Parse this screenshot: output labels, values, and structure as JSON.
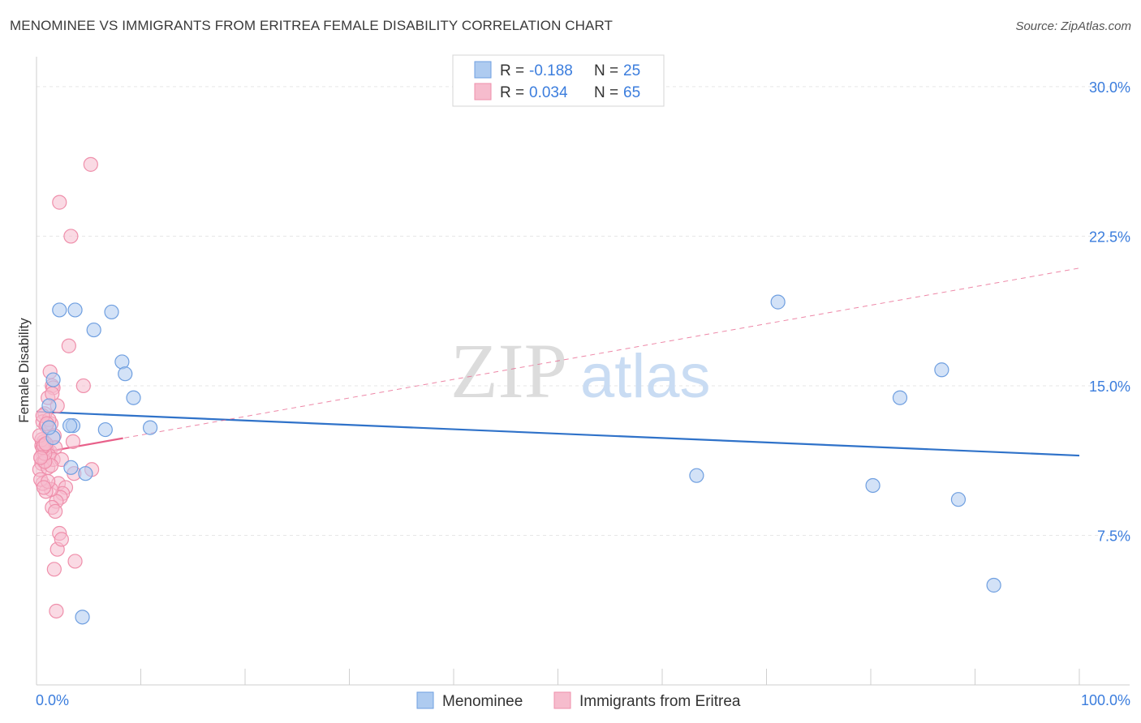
{
  "title": "MENOMINEE VS IMMIGRANTS FROM ERITREA FEMALE DISABILITY CORRELATION CHART",
  "source": "Source: ZipAtlas.com",
  "watermark": {
    "zip": "ZIP",
    "atlas": "atlas"
  },
  "legend": {
    "r_label": "R =",
    "n_label": "N =",
    "rows": [
      {
        "r": "-0.188",
        "n": "25"
      },
      {
        "r": "0.034",
        "n": "65"
      }
    ]
  },
  "bottom_legend": [
    "Menominee",
    "Immigrants from Eritrea"
  ],
  "colors": {
    "menominee_fill": "#aecbf0",
    "menominee_stroke": "#6f9fe0",
    "menominee_line": "#2f72c9",
    "eritrea_fill": "#f6bccd",
    "eritrea_stroke": "#ef8fab",
    "eritrea_line": "#e8608a",
    "axis_text": "#3b7ddd",
    "grid": "#e6e6e6"
  },
  "chart_data": {
    "type": "scatter",
    "title": "MENOMINEE VS IMMIGRANTS FROM ERITREA FEMALE DISABILITY CORRELATION CHART",
    "xlabel": "",
    "ylabel": "Female Disability",
    "xlim": [
      0,
      100
    ],
    "ylim": [
      0,
      31.5
    ],
    "x_tick_labels": [
      "0.0%",
      "100.0%"
    ],
    "y_ticks": [
      7.5,
      15.0,
      22.5,
      30.0
    ],
    "y_tick_labels": [
      "7.5%",
      "15.0%",
      "22.5%",
      "30.0%"
    ],
    "grid": true,
    "legend_position": "top-center",
    "series": [
      {
        "name": "Menominee",
        "x": [
          2.2,
          7.2,
          3.7,
          8.2,
          8.5,
          9.3,
          5.5,
          1.6,
          1.2,
          1.6,
          3.5,
          3.2,
          6.6,
          10.9,
          3.3,
          4.7,
          4.4,
          71.1,
          86.8,
          82.8,
          80.2,
          88.4,
          63.3,
          91.8,
          1.2
        ],
        "y": [
          18.8,
          18.7,
          18.8,
          16.2,
          15.6,
          14.4,
          17.8,
          15.3,
          14.0,
          12.4,
          13.0,
          13.0,
          12.8,
          12.9,
          10.9,
          10.6,
          3.4,
          19.2,
          15.8,
          14.4,
          10.0,
          9.3,
          10.5,
          5.0,
          12.9
        ],
        "trend": {
          "x": [
            0,
            100
          ],
          "y": [
            13.7,
            11.5
          ]
        }
      },
      {
        "name": "Immigrants from Eritrea",
        "x": [
          5.2,
          2.2,
          3.3,
          3.1,
          1.3,
          1.5,
          1.6,
          1.1,
          2.0,
          0.8,
          0.6,
          0.9,
          1.4,
          1.7,
          0.7,
          0.5,
          1.0,
          0.6,
          0.4,
          1.3,
          0.9,
          1.8,
          1.2,
          0.7,
          0.5,
          0.3,
          1.1,
          1.6,
          2.1,
          2.8,
          2.5,
          4.5,
          3.6,
          2.3,
          1.9,
          1.5,
          1.4,
          0.9,
          0.6,
          0.4,
          2.4,
          3.5,
          5.3,
          1.4,
          0.8,
          2.2,
          2.0,
          3.7,
          1.7,
          1.9,
          0.8,
          0.6,
          0.5,
          0.3,
          0.7,
          0.9,
          1.2,
          0.6,
          0.4,
          1.0,
          1.1,
          2.4,
          1.8,
          0.7,
          1.5
        ],
        "y": [
          26.1,
          24.2,
          22.5,
          17.0,
          15.7,
          15.0,
          14.9,
          14.4,
          14.0,
          13.6,
          13.2,
          13.0,
          13.1,
          12.5,
          12.2,
          12.0,
          11.8,
          11.6,
          11.4,
          11.7,
          11.8,
          11.9,
          11.5,
          11.2,
          11.1,
          10.8,
          10.9,
          11.3,
          10.1,
          9.9,
          9.6,
          15.0,
          10.6,
          9.4,
          9.2,
          8.9,
          9.8,
          9.7,
          10.1,
          10.3,
          11.3,
          12.2,
          10.8,
          11.0,
          11.2,
          7.6,
          6.8,
          6.2,
          5.8,
          3.7,
          11.6,
          11.9,
          12.3,
          12.5,
          12.0,
          12.1,
          13.3,
          13.5,
          11.4,
          13.1,
          10.2,
          7.3,
          8.7,
          9.9,
          14.6
        ],
        "trend": {
          "x": [
            0,
            100
          ],
          "y": [
            11.6,
            20.9
          ]
        },
        "trend_solid_until_x": 8.3
      }
    ]
  }
}
